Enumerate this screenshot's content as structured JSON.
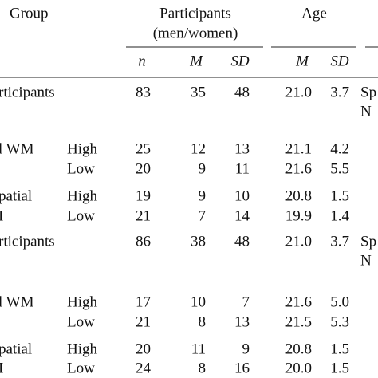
{
  "header": {
    "group": "Group",
    "participants": "Participants",
    "participants_sub": "(men/women)",
    "age": "Age",
    "columns": [
      "n",
      "M",
      "SD",
      "M",
      "SD"
    ]
  },
  "rows": [
    {
      "group": "rticipants",
      "values": [
        "83",
        "35",
        "48",
        "21.0",
        "3.7"
      ],
      "side": [
        "Sp",
        "N"
      ]
    },
    {
      "group": "l WM",
      "level": "High",
      "values": [
        "25",
        "12",
        "13",
        "21.1",
        "4.2"
      ]
    },
    {
      "level": "Low",
      "values": [
        "20",
        "9",
        "11",
        "21.6",
        "5.5"
      ]
    },
    {
      "group": "patial",
      "level": "High",
      "values": [
        "19",
        "9",
        "10",
        "20.8",
        "1.5"
      ]
    },
    {
      "group": "I",
      "level": "Low",
      "values": [
        "21",
        "7",
        "14",
        "19.9",
        "1.4"
      ]
    },
    {
      "group": "rticipants",
      "values": [
        "86",
        "38",
        "48",
        "21.0",
        "3.7"
      ],
      "side": [
        "Sp",
        "N"
      ]
    },
    {
      "group": "l WM",
      "level": "High",
      "values": [
        "17",
        "10",
        "7",
        "21.6",
        "5.0"
      ]
    },
    {
      "level": "Low",
      "values": [
        "21",
        "8",
        "13",
        "21.5",
        "5.3"
      ]
    },
    {
      "group": "patial",
      "level": "High",
      "values": [
        "20",
        "11",
        "9",
        "20.8",
        "1.5"
      ]
    },
    {
      "group": "I",
      "level": "Low",
      "values": [
        "24",
        "8",
        "16",
        "20.0",
        "1.5"
      ]
    }
  ]
}
